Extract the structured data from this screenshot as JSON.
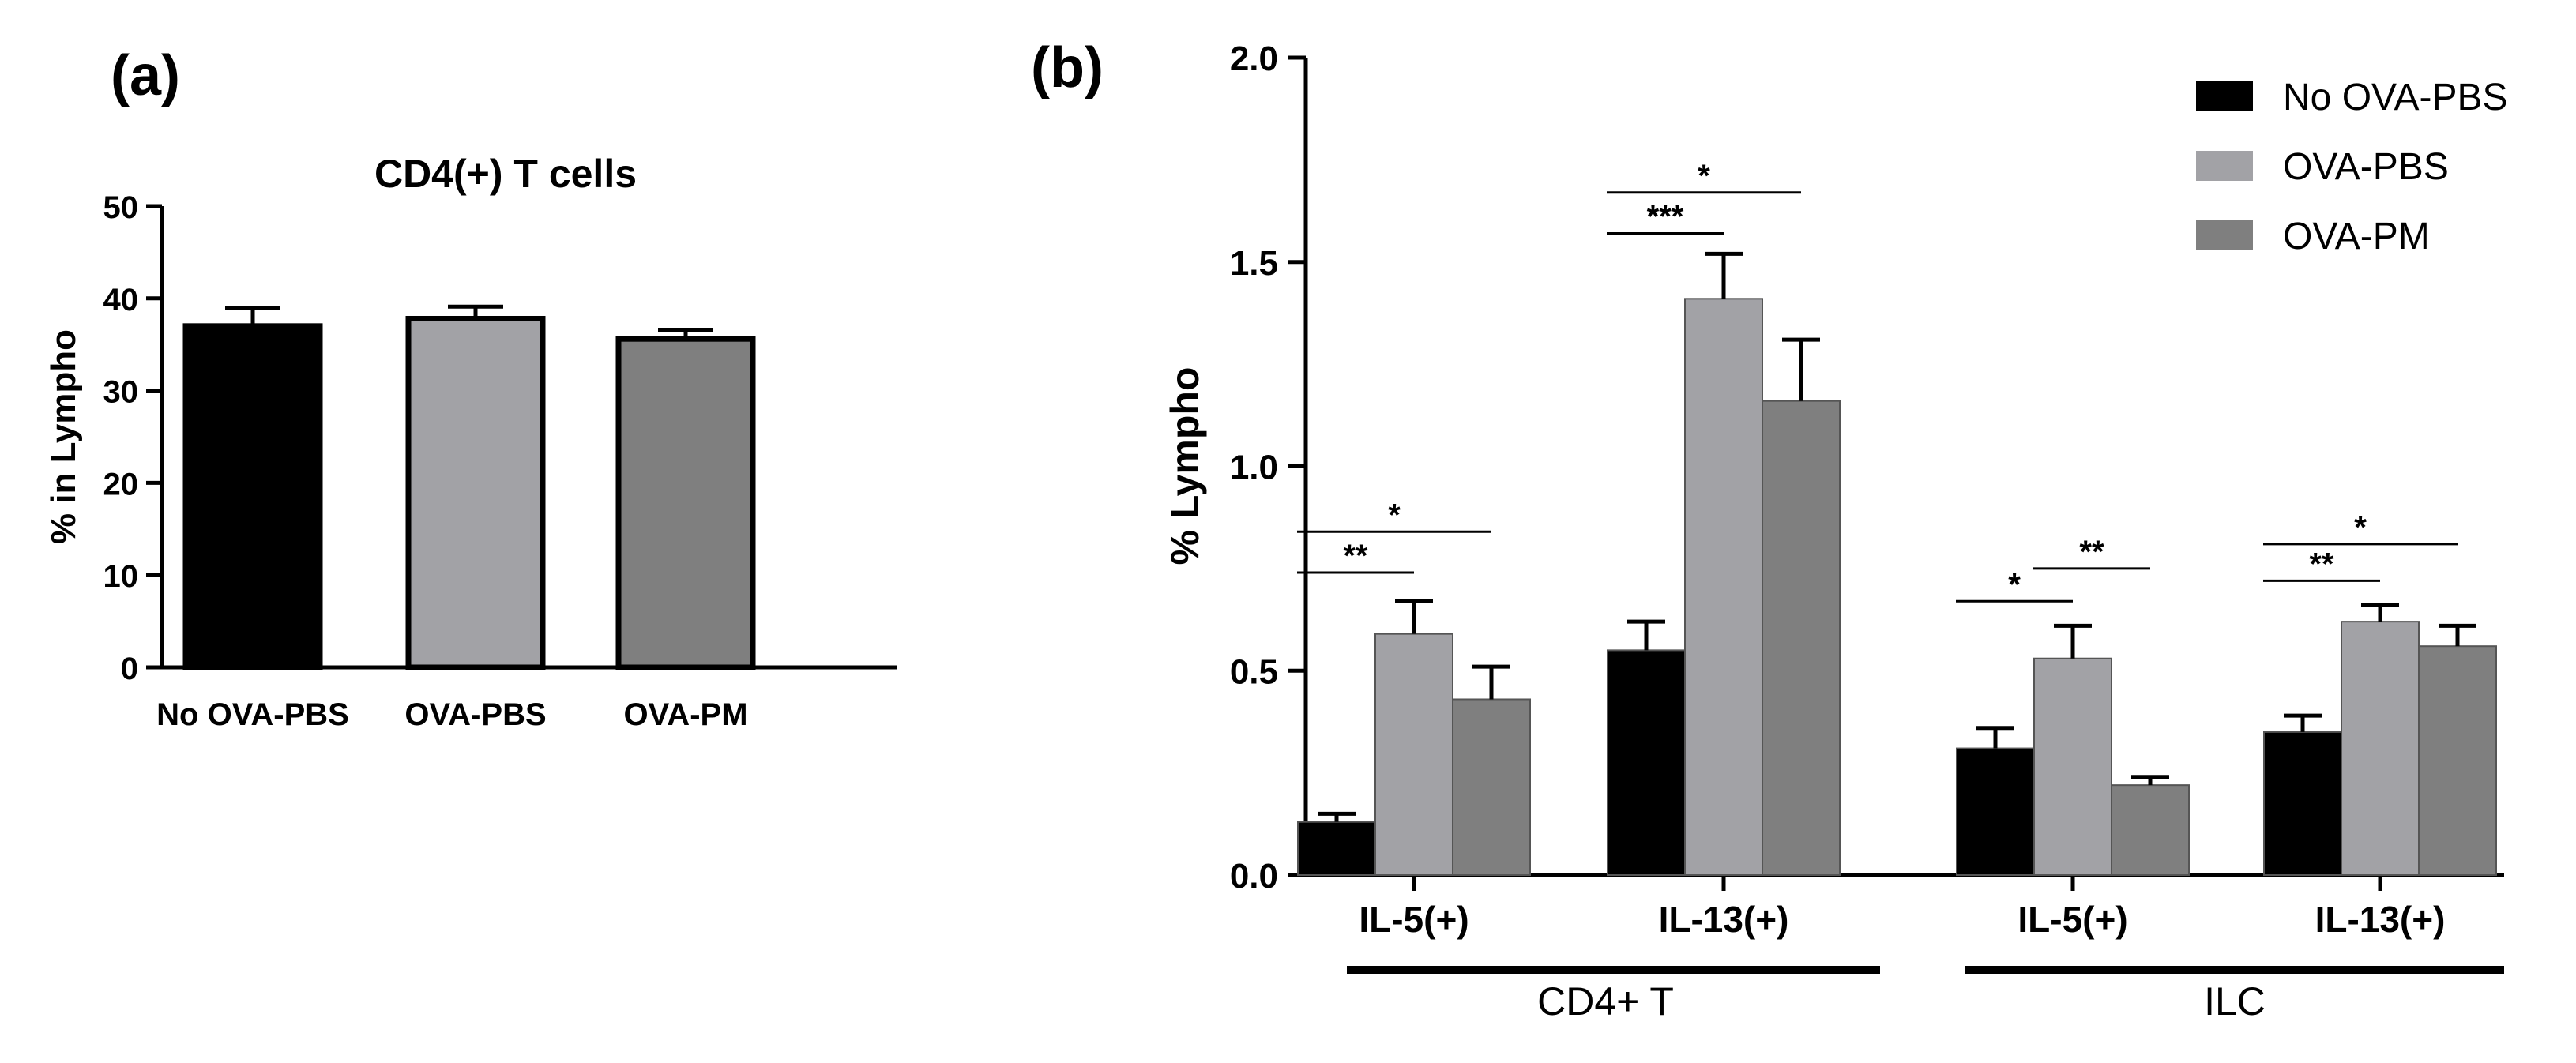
{
  "chart_data": [
    {
      "type": "bar",
      "panel_label": "(a)",
      "title": "CD4(+) T cells",
      "xlabel": "",
      "ylabel": "% in Lympho",
      "ylim": [
        0,
        50
      ],
      "yticks": [
        "0",
        "10",
        "20",
        "30",
        "40",
        "50"
      ],
      "categories": [
        "No OVA-PBS",
        "OVA-PBS",
        "OVA-PM"
      ],
      "values": [
        37.0,
        37.8,
        35.6
      ],
      "errors": [
        2.0,
        1.3,
        1.0
      ],
      "colors": [
        "#000000",
        "#a2a2a6",
        "#7f7f7f"
      ]
    },
    {
      "type": "bar",
      "panel_label": "(b)",
      "title": "",
      "ylabel": "% Lympho",
      "ylim": [
        0,
        2.0
      ],
      "yticks": [
        "0.0",
        "0.5",
        "1.0",
        "1.5",
        "2.0"
      ],
      "categories": [
        "IL-5(+)",
        "IL-13(+)",
        "IL-5(+)",
        "IL-13(+)"
      ],
      "groups": [
        {
          "label": "CD4+ T",
          "categories": [
            0,
            1
          ]
        },
        {
          "label": "ILC",
          "categories": [
            2,
            3
          ]
        }
      ],
      "legend": {
        "position": "top-right"
      },
      "series": [
        {
          "name": "No OVA-PBS",
          "color": "#000000",
          "values": [
            0.13,
            0.55,
            0.31,
            0.35
          ],
          "errors": [
            0.02,
            0.07,
            0.05,
            0.04
          ]
        },
        {
          "name": "OVA-PBS",
          "color": "#a2a2a6",
          "values": [
            0.59,
            1.41,
            0.53,
            0.62
          ],
          "errors": [
            0.08,
            0.11,
            0.08,
            0.04
          ]
        },
        {
          "name": "OVA-PM",
          "color": "#7f7f7f",
          "values": [
            0.43,
            1.16,
            0.22,
            0.56
          ],
          "errors": [
            0.08,
            0.15,
            0.02,
            0.05
          ]
        }
      ],
      "significance": [
        {
          "category": 0,
          "from": 0,
          "to": 1,
          "label": "**",
          "level": 0.74
        },
        {
          "category": 0,
          "from": 0,
          "to": 2,
          "label": "*",
          "level": 0.84
        },
        {
          "category": 1,
          "from": 0,
          "to": 1,
          "label": "***",
          "level": 1.57
        },
        {
          "category": 1,
          "from": 0,
          "to": 2,
          "label": "*",
          "level": 1.67
        },
        {
          "category": 2,
          "from": 0,
          "to": 1,
          "label": "*",
          "level": 0.67
        },
        {
          "category": 2,
          "from": 1,
          "to": 2,
          "label": "**",
          "level": 0.75
        },
        {
          "category": 3,
          "from": 0,
          "to": 1,
          "label": "**",
          "level": 0.72
        },
        {
          "category": 3,
          "from": 0,
          "to": 2,
          "label": "*",
          "level": 0.81
        }
      ]
    }
  ]
}
